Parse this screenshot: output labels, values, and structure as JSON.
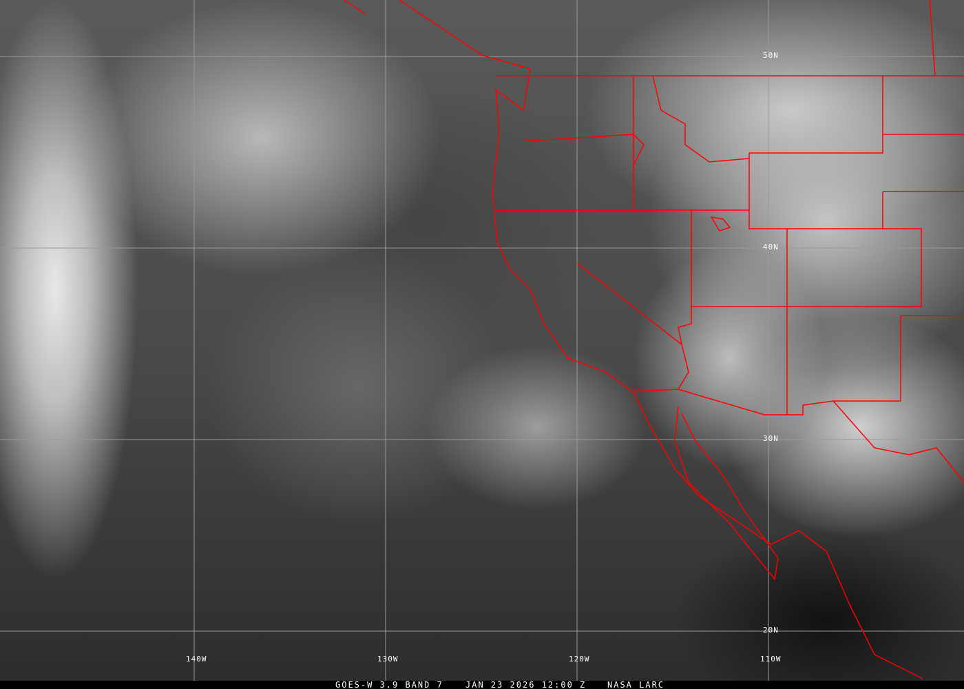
{
  "map": {
    "grid_labels": {
      "lon": [
        "140W",
        "130W",
        "120W",
        "110W"
      ],
      "lat": [
        "50N",
        "40N",
        "30N",
        "20N"
      ]
    },
    "colors": {
      "borders": "#ff0000",
      "grid": "#9a9a9a"
    }
  },
  "caption": {
    "satellite": "GOES-W 3.9 BAND 7",
    "datetime": "JAN 23 2026 12:00 Z",
    "source": "NASA LARC"
  }
}
